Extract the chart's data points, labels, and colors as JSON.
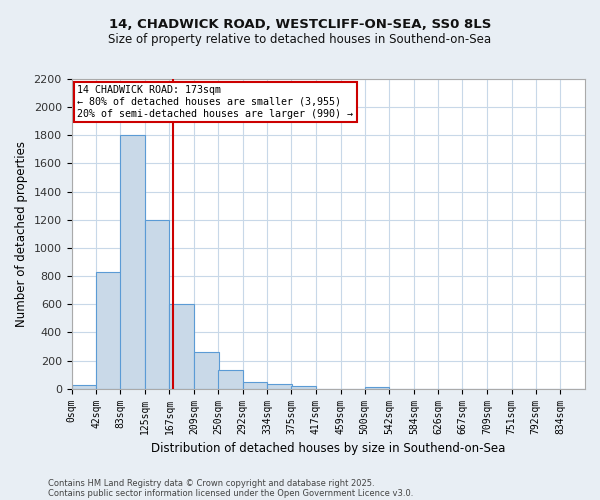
{
  "title_line1": "14, CHADWICK ROAD, WESTCLIFF-ON-SEA, SS0 8LS",
  "title_line2": "Size of property relative to detached houses in Southend-on-Sea",
  "xlabel": "Distribution of detached houses by size in Southend-on-Sea",
  "ylabel": "Number of detached properties",
  "bin_labels": [
    "0sqm",
    "42sqm",
    "83sqm",
    "125sqm",
    "167sqm",
    "209sqm",
    "250sqm",
    "292sqm",
    "334sqm",
    "375sqm",
    "417sqm",
    "459sqm",
    "500sqm",
    "542sqm",
    "584sqm",
    "626sqm",
    "667sqm",
    "709sqm",
    "751sqm",
    "792sqm",
    "834sqm"
  ],
  "bin_edges": [
    0,
    42,
    83,
    125,
    167,
    209,
    250,
    292,
    334,
    375,
    417,
    459,
    500,
    542,
    584,
    626,
    667,
    709,
    751,
    792,
    834
  ],
  "bar_heights": [
    25,
    830,
    1800,
    1200,
    600,
    260,
    130,
    50,
    35,
    20,
    0,
    0,
    15,
    0,
    0,
    0,
    0,
    0,
    0,
    0,
    0
  ],
  "bar_color": "#c9d9e8",
  "bar_edge_color": "#5b9bd5",
  "property_size": 173,
  "red_line_color": "#cc0000",
  "annotation_line1": "14 CHADWICK ROAD: 173sqm",
  "annotation_line2": "← 80% of detached houses are smaller (3,955)",
  "annotation_line3": "20% of semi-detached houses are larger (990) →",
  "annotation_box_color": "#cc0000",
  "ylim": [
    0,
    2200
  ],
  "yticks": [
    0,
    200,
    400,
    600,
    800,
    1000,
    1200,
    1400,
    1600,
    1800,
    2000,
    2200
  ],
  "footnote1": "Contains HM Land Registry data © Crown copyright and database right 2025.",
  "footnote2": "Contains public sector information licensed under the Open Government Licence v3.0.",
  "bg_color": "#e8eef4",
  "plot_bg_color": "#ffffff",
  "grid_color": "#c8d8e8"
}
